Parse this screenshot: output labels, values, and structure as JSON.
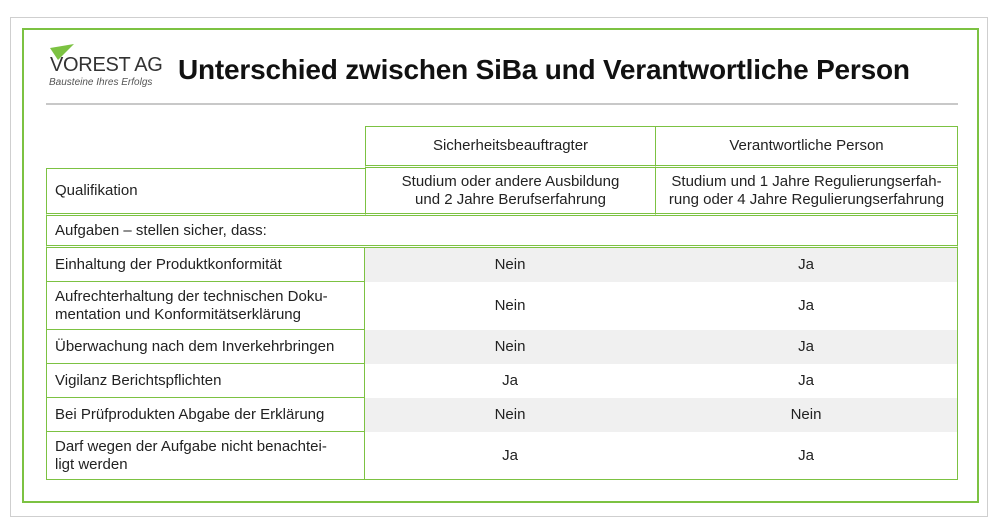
{
  "logo": {
    "name": "VOREST AG",
    "tagline": "Bausteine Ihres Erfolgs"
  },
  "title": "Unterschied zwischen SiBa und Verantwortliche Person",
  "columns": [
    "Sicherheitsbeauftragter",
    "Verantwortliche Person"
  ],
  "qualification": {
    "label": "Qualifikation",
    "siba_line1": "Studium oder andere Ausbildung",
    "siba_line2": "und 2 Jahre Berufserfahrung",
    "vp_line1": "Studium und 1 Jahre Regulierungserfah-",
    "vp_line2": "rung oder 4 Jahre Regulierungserfahrung"
  },
  "tasks_heading": "Aufgaben – stellen sicher, dass:",
  "rows": [
    {
      "label": "Einhaltung der Produktkonformität",
      "siba": "Nein",
      "vp": "Ja"
    },
    {
      "label_line1": "Aufrechterhaltung der technischen Doku-",
      "label_line2": "mentation und Konformitätserklärung",
      "siba": "Nein",
      "vp": "Ja"
    },
    {
      "label": "Überwachung nach dem Inverkehrbringen",
      "siba": "Nein",
      "vp": "Ja"
    },
    {
      "label": "Vigilanz Berichtspflichten",
      "siba": "Ja",
      "vp": "Ja"
    },
    {
      "label": "Bei Prüfprodukten Abgabe der Erklärung",
      "siba": "Nein",
      "vp": "Nein"
    },
    {
      "label_line1": "Darf wegen der Aufgabe nicht benachtei-",
      "label_line2": "ligt werden",
      "siba": "Ja",
      "vp": "Ja"
    }
  ],
  "colors": {
    "accent": "#7cc242",
    "shade": "#f0f0f0",
    "rule": "#c8c8c8"
  }
}
